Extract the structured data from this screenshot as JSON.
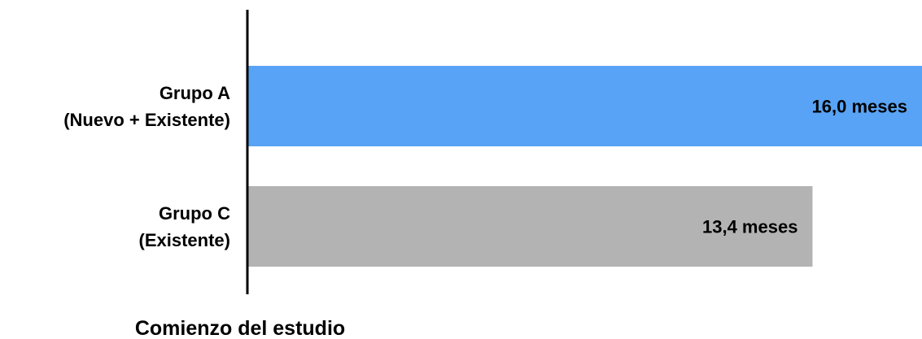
{
  "chart_data": {
    "type": "bar",
    "orientation": "horizontal",
    "categories": [
      [
        "Grupo A",
        "(Nuevo + Existente)"
      ],
      [
        "Grupo C",
        "(Existente)"
      ]
    ],
    "values": [
      16.0,
      13.4
    ],
    "value_labels": [
      "16,0 meses",
      "13,4 meses"
    ],
    "colors": [
      "#58a3f5",
      "#b3b3b3"
    ],
    "xlabel": "Comienzo del estudio",
    "ylabel": "",
    "title": "",
    "xlim": [
      0,
      16.0
    ],
    "grid": false,
    "legend": "none"
  }
}
